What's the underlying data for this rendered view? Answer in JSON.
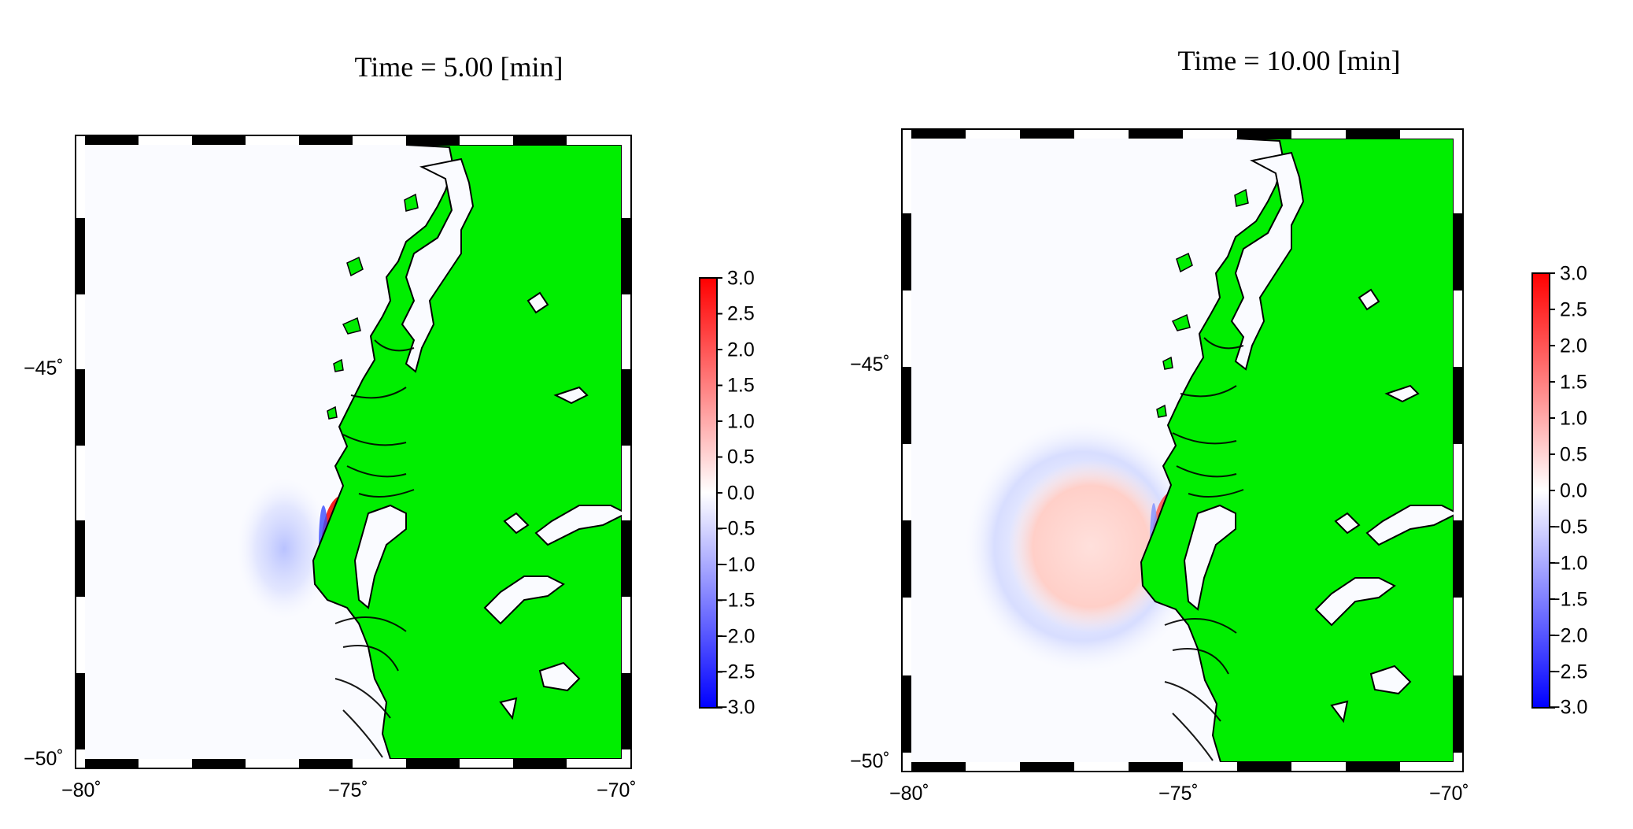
{
  "panels": [
    {
      "title": "Time = 5.00 [min]",
      "x_ticks": [
        "−80˚",
        "−75˚",
        "−70˚"
      ],
      "y_ticks": [
        "−45˚",
        "−50˚"
      ],
      "colorbar_ticks": [
        "3.0",
        "2.5",
        "2.0",
        "1.5",
        "1.0",
        "0.5",
        "0.0",
        "−0.5",
        "−1.0",
        "−1.5",
        "−2.0",
        "−2.5",
        "−3.0"
      ],
      "colorbar_range": [
        -3.0,
        3.0
      ]
    },
    {
      "title": "Time = 10.00 [min]",
      "x_ticks": [
        "−80˚",
        "−75˚",
        "−70˚"
      ],
      "y_ticks": [
        "−45˚",
        "−50˚"
      ],
      "colorbar_ticks": [
        "3.0",
        "2.5",
        "2.0",
        "1.5",
        "1.0",
        "0.5",
        "0.0",
        "−0.5",
        "−1.0",
        "−1.5",
        "−2.0",
        "−2.5",
        "−3.0"
      ],
      "colorbar_range": [
        -3.0,
        3.0
      ]
    }
  ],
  "colors": {
    "land": "#00ee00",
    "ocean": "#fafbff",
    "positive": "#ff0000",
    "negative": "#0000ff",
    "zero": "#ffffff"
  }
}
